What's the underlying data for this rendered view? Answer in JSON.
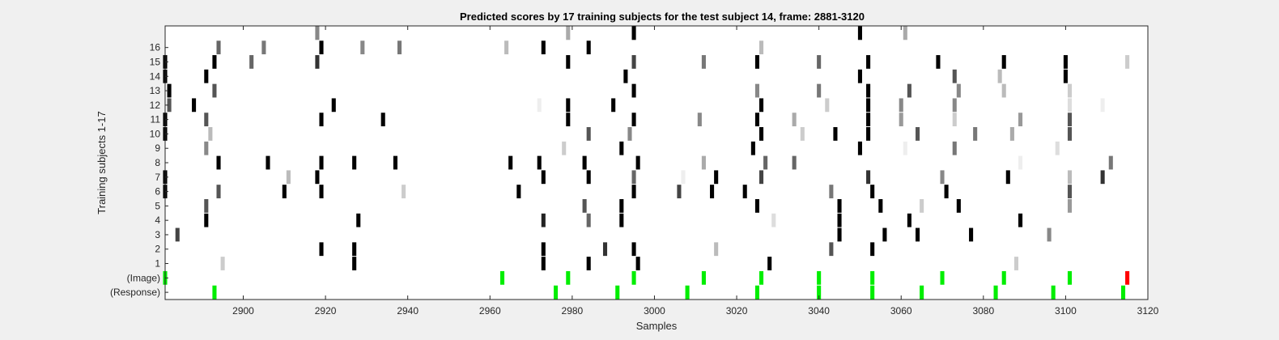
{
  "chart_data": {
    "type": "heatmap",
    "title": "Predicted scores by 17 training subjects for the test subject 14, frame: 2881-3120",
    "xlabel": "Samples",
    "ylabel": "Training subjects 1-17",
    "xlim": [
      2881,
      3120
    ],
    "xticks": [
      2900,
      2920,
      2940,
      2960,
      2980,
      3000,
      3020,
      3040,
      3060,
      3080,
      3100,
      3120
    ],
    "rows": [
      "(Response)",
      "(Image)",
      "1",
      "2",
      "3",
      "4",
      "5",
      "6",
      "7",
      "8",
      "9",
      "10",
      "11",
      "12",
      "13",
      "14",
      "15",
      "16",
      "17"
    ],
    "row_tick_labels": [
      "(Response)",
      "(Image)",
      "1",
      "2",
      "3",
      "4",
      "5",
      "6",
      "7",
      "8",
      "9",
      "10",
      "11",
      "12",
      "13",
      "14",
      "15",
      "16",
      ""
    ],
    "colors": {
      "image_marker": "#00ee00",
      "response_marker": "#00ee00",
      "target_marker": "#ff0000",
      "score": "grayscale (black = high)"
    },
    "marks": [
      {
        "row": "(Response)",
        "x": 2893,
        "color": "#00ee00"
      },
      {
        "row": "(Response)",
        "x": 2976,
        "color": "#00ee00"
      },
      {
        "row": "(Response)",
        "x": 2991,
        "color": "#00ee00"
      },
      {
        "row": "(Response)",
        "x": 3008,
        "color": "#00ee00"
      },
      {
        "row": "(Response)",
        "x": 3025,
        "color": "#00ee00"
      },
      {
        "row": "(Response)",
        "x": 3040,
        "color": "#00ee00"
      },
      {
        "row": "(Response)",
        "x": 3053,
        "color": "#00ee00"
      },
      {
        "row": "(Response)",
        "x": 3065,
        "color": "#00ee00"
      },
      {
        "row": "(Response)",
        "x": 3083,
        "color": "#00ee00"
      },
      {
        "row": "(Response)",
        "x": 3097,
        "color": "#00ee00"
      },
      {
        "row": "(Response)",
        "x": 3114,
        "color": "#00ee00"
      },
      {
        "row": "(Image)",
        "x": 2881,
        "color": "#00ee00"
      },
      {
        "row": "(Image)",
        "x": 2963,
        "color": "#00ee00"
      },
      {
        "row": "(Image)",
        "x": 2979,
        "color": "#00ee00"
      },
      {
        "row": "(Image)",
        "x": 2995,
        "color": "#00ee00"
      },
      {
        "row": "(Image)",
        "x": 3012,
        "color": "#00ee00"
      },
      {
        "row": "(Image)",
        "x": 3026,
        "color": "#00ee00"
      },
      {
        "row": "(Image)",
        "x": 3040,
        "color": "#00ee00"
      },
      {
        "row": "(Image)",
        "x": 3053,
        "color": "#00ee00"
      },
      {
        "row": "(Image)",
        "x": 3070,
        "color": "#00ee00"
      },
      {
        "row": "(Image)",
        "x": 3085,
        "color": "#00ee00"
      },
      {
        "row": "(Image)",
        "x": 3101,
        "color": "#00ee00"
      },
      {
        "row": "(Image)",
        "x": 3115,
        "color": "#ff0000"
      },
      {
        "row": "1",
        "x": 2895,
        "color": "#cccccc"
      },
      {
        "row": "1",
        "x": 2927,
        "color": "#000000"
      },
      {
        "row": "1",
        "x": 2973,
        "color": "#000000"
      },
      {
        "row": "1",
        "x": 2984,
        "color": "#000000"
      },
      {
        "row": "1",
        "x": 2996,
        "color": "#000000"
      },
      {
        "row": "1",
        "x": 3028,
        "color": "#000000"
      },
      {
        "row": "1",
        "x": 3088,
        "color": "#cccccc"
      },
      {
        "row": "2",
        "x": 2919,
        "color": "#000000"
      },
      {
        "row": "2",
        "x": 2927,
        "color": "#000000"
      },
      {
        "row": "2",
        "x": 2973,
        "color": "#000000"
      },
      {
        "row": "2",
        "x": 2988,
        "color": "#333333"
      },
      {
        "row": "2",
        "x": 2995,
        "color": "#000000"
      },
      {
        "row": "2",
        "x": 3015,
        "color": "#bbbbbb"
      },
      {
        "row": "2",
        "x": 3043,
        "color": "#555555"
      },
      {
        "row": "2",
        "x": 3053,
        "color": "#000000"
      },
      {
        "row": "3",
        "x": 2884,
        "color": "#444444"
      },
      {
        "row": "3",
        "x": 3045,
        "color": "#000000"
      },
      {
        "row": "3",
        "x": 3056,
        "color": "#000000"
      },
      {
        "row": "3",
        "x": 3064,
        "color": "#000000"
      },
      {
        "row": "3",
        "x": 3077,
        "color": "#000000"
      },
      {
        "row": "3",
        "x": 3096,
        "color": "#888888"
      },
      {
        "row": "4",
        "x": 2891,
        "color": "#000000"
      },
      {
        "row": "4",
        "x": 2928,
        "color": "#000000"
      },
      {
        "row": "4",
        "x": 2973,
        "color": "#222222"
      },
      {
        "row": "4",
        "x": 2984,
        "color": "#666666"
      },
      {
        "row": "4",
        "x": 2992,
        "color": "#000000"
      },
      {
        "row": "4",
        "x": 3029,
        "color": "#dddddd"
      },
      {
        "row": "4",
        "x": 3045,
        "color": "#000000"
      },
      {
        "row": "4",
        "x": 3062,
        "color": "#000000"
      },
      {
        "row": "4",
        "x": 3089,
        "color": "#000000"
      },
      {
        "row": "5",
        "x": 2891,
        "color": "#555555"
      },
      {
        "row": "5",
        "x": 2983,
        "color": "#555555"
      },
      {
        "row": "5",
        "x": 2992,
        "color": "#000000"
      },
      {
        "row": "5",
        "x": 3025,
        "color": "#000000"
      },
      {
        "row": "5",
        "x": 3045,
        "color": "#000000"
      },
      {
        "row": "5",
        "x": 3055,
        "color": "#000000"
      },
      {
        "row": "5",
        "x": 3065,
        "color": "#cccccc"
      },
      {
        "row": "5",
        "x": 3074,
        "color": "#000000"
      },
      {
        "row": "5",
        "x": 3101,
        "color": "#999999"
      },
      {
        "row": "6",
        "x": 2881,
        "color": "#000000"
      },
      {
        "row": "6",
        "x": 2894,
        "color": "#555555"
      },
      {
        "row": "6",
        "x": 2910,
        "color": "#000000"
      },
      {
        "row": "6",
        "x": 2919,
        "color": "#000000"
      },
      {
        "row": "6",
        "x": 2939,
        "color": "#cccccc"
      },
      {
        "row": "6",
        "x": 2967,
        "color": "#000000"
      },
      {
        "row": "6",
        "x": 2995,
        "color": "#000000"
      },
      {
        "row": "6",
        "x": 3006,
        "color": "#444444"
      },
      {
        "row": "6",
        "x": 3014,
        "color": "#000000"
      },
      {
        "row": "6",
        "x": 3022,
        "color": "#000000"
      },
      {
        "row": "6",
        "x": 3043,
        "color": "#777777"
      },
      {
        "row": "6",
        "x": 3053,
        "color": "#000000"
      },
      {
        "row": "6",
        "x": 3071,
        "color": "#000000"
      },
      {
        "row": "6",
        "x": 3101,
        "color": "#555555"
      },
      {
        "row": "7",
        "x": 2881,
        "color": "#000000"
      },
      {
        "row": "7",
        "x": 2911,
        "color": "#bbbbbb"
      },
      {
        "row": "7",
        "x": 2918,
        "color": "#000000"
      },
      {
        "row": "7",
        "x": 2973,
        "color": "#000000"
      },
      {
        "row": "7",
        "x": 2984,
        "color": "#000000"
      },
      {
        "row": "7",
        "x": 2995,
        "color": "#666666"
      },
      {
        "row": "7",
        "x": 3007,
        "color": "#eeeeee"
      },
      {
        "row": "7",
        "x": 3015,
        "color": "#000000"
      },
      {
        "row": "7",
        "x": 3026,
        "color": "#444444"
      },
      {
        "row": "7",
        "x": 3052,
        "color": "#333333"
      },
      {
        "row": "7",
        "x": 3070,
        "color": "#888888"
      },
      {
        "row": "7",
        "x": 3086,
        "color": "#000000"
      },
      {
        "row": "7",
        "x": 3101,
        "color": "#bbbbbb"
      },
      {
        "row": "7",
        "x": 3109,
        "color": "#333333"
      },
      {
        "row": "8",
        "x": 2894,
        "color": "#000000"
      },
      {
        "row": "8",
        "x": 2906,
        "color": "#000000"
      },
      {
        "row": "8",
        "x": 2919,
        "color": "#000000"
      },
      {
        "row": "8",
        "x": 2927,
        "color": "#000000"
      },
      {
        "row": "8",
        "x": 2937,
        "color": "#000000"
      },
      {
        "row": "8",
        "x": 2965,
        "color": "#000000"
      },
      {
        "row": "8",
        "x": 2972,
        "color": "#000000"
      },
      {
        "row": "8",
        "x": 2983,
        "color": "#000000"
      },
      {
        "row": "8",
        "x": 2996,
        "color": "#000000"
      },
      {
        "row": "8",
        "x": 3012,
        "color": "#aaaaaa"
      },
      {
        "row": "8",
        "x": 3027,
        "color": "#666666"
      },
      {
        "row": "8",
        "x": 3034,
        "color": "#666666"
      },
      {
        "row": "8",
        "x": 3089,
        "color": "#eeeeee"
      },
      {
        "row": "8",
        "x": 3111,
        "color": "#777777"
      },
      {
        "row": "9",
        "x": 2891,
        "color": "#888888"
      },
      {
        "row": "9",
        "x": 2978,
        "color": "#cccccc"
      },
      {
        "row": "9",
        "x": 2992,
        "color": "#000000"
      },
      {
        "row": "9",
        "x": 3024,
        "color": "#000000"
      },
      {
        "row": "9",
        "x": 3050,
        "color": "#000000"
      },
      {
        "row": "9",
        "x": 3061,
        "color": "#eeeeee"
      },
      {
        "row": "9",
        "x": 3073,
        "color": "#777777"
      },
      {
        "row": "9",
        "x": 3098,
        "color": "#dddddd"
      },
      {
        "row": "10",
        "x": 2881,
        "color": "#000000"
      },
      {
        "row": "10",
        "x": 2892,
        "color": "#bbbbbb"
      },
      {
        "row": "10",
        "x": 2984,
        "color": "#555555"
      },
      {
        "row": "10",
        "x": 2994,
        "color": "#888888"
      },
      {
        "row": "10",
        "x": 3026,
        "color": "#000000"
      },
      {
        "row": "10",
        "x": 3036,
        "color": "#cccccc"
      },
      {
        "row": "10",
        "x": 3044,
        "color": "#000000"
      },
      {
        "row": "10",
        "x": 3052,
        "color": "#000000"
      },
      {
        "row": "10",
        "x": 3064,
        "color": "#555555"
      },
      {
        "row": "10",
        "x": 3078,
        "color": "#777777"
      },
      {
        "row": "10",
        "x": 3087,
        "color": "#aaaaaa"
      },
      {
        "row": "10",
        "x": 3101,
        "color": "#555555"
      },
      {
        "row": "11",
        "x": 2881,
        "color": "#000000"
      },
      {
        "row": "11",
        "x": 2891,
        "color": "#555555"
      },
      {
        "row": "11",
        "x": 2919,
        "color": "#000000"
      },
      {
        "row": "11",
        "x": 2934,
        "color": "#000000"
      },
      {
        "row": "11",
        "x": 2979,
        "color": "#000000"
      },
      {
        "row": "11",
        "x": 2995,
        "color": "#000000"
      },
      {
        "row": "11",
        "x": 3011,
        "color": "#888888"
      },
      {
        "row": "11",
        "x": 3025,
        "color": "#000000"
      },
      {
        "row": "11",
        "x": 3034,
        "color": "#aaaaaa"
      },
      {
        "row": "11",
        "x": 3052,
        "color": "#000000"
      },
      {
        "row": "11",
        "x": 3060,
        "color": "#999999"
      },
      {
        "row": "11",
        "x": 3073,
        "color": "#cccccc"
      },
      {
        "row": "11",
        "x": 3089,
        "color": "#999999"
      },
      {
        "row": "11",
        "x": 3101,
        "color": "#555555"
      },
      {
        "row": "12",
        "x": 2882,
        "color": "#555555"
      },
      {
        "row": "12",
        "x": 2888,
        "color": "#000000"
      },
      {
        "row": "12",
        "x": 2922,
        "color": "#000000"
      },
      {
        "row": "12",
        "x": 2972,
        "color": "#eeeeee"
      },
      {
        "row": "12",
        "x": 2979,
        "color": "#000000"
      },
      {
        "row": "12",
        "x": 2990,
        "color": "#000000"
      },
      {
        "row": "12",
        "x": 3026,
        "color": "#000000"
      },
      {
        "row": "12",
        "x": 3042,
        "color": "#cccccc"
      },
      {
        "row": "12",
        "x": 3052,
        "color": "#000000"
      },
      {
        "row": "12",
        "x": 3060,
        "color": "#888888"
      },
      {
        "row": "12",
        "x": 3073,
        "color": "#888888"
      },
      {
        "row": "12",
        "x": 3101,
        "color": "#dddddd"
      },
      {
        "row": "12",
        "x": 3109,
        "color": "#eeeeee"
      },
      {
        "row": "13",
        "x": 2882,
        "color": "#000000"
      },
      {
        "row": "13",
        "x": 2893,
        "color": "#555555"
      },
      {
        "row": "13",
        "x": 2995,
        "color": "#000000"
      },
      {
        "row": "13",
        "x": 3025,
        "color": "#888888"
      },
      {
        "row": "13",
        "x": 3040,
        "color": "#777777"
      },
      {
        "row": "13",
        "x": 3052,
        "color": "#000000"
      },
      {
        "row": "13",
        "x": 3062,
        "color": "#555555"
      },
      {
        "row": "13",
        "x": 3074,
        "color": "#888888"
      },
      {
        "row": "13",
        "x": 3085,
        "color": "#bbbbbb"
      },
      {
        "row": "13",
        "x": 3101,
        "color": "#cccccc"
      },
      {
        "row": "14",
        "x": 2881,
        "color": "#000000"
      },
      {
        "row": "14",
        "x": 2891,
        "color": "#000000"
      },
      {
        "row": "14",
        "x": 2993,
        "color": "#000000"
      },
      {
        "row": "14",
        "x": 3050,
        "color": "#000000"
      },
      {
        "row": "14",
        "x": 3073,
        "color": "#555555"
      },
      {
        "row": "14",
        "x": 3084,
        "color": "#bbbbbb"
      },
      {
        "row": "14",
        "x": 3100,
        "color": "#000000"
      },
      {
        "row": "15",
        "x": 2881,
        "color": "#000000"
      },
      {
        "row": "15",
        "x": 2893,
        "color": "#000000"
      },
      {
        "row": "15",
        "x": 2902,
        "color": "#666666"
      },
      {
        "row": "15",
        "x": 2918,
        "color": "#333333"
      },
      {
        "row": "15",
        "x": 2979,
        "color": "#000000"
      },
      {
        "row": "15",
        "x": 2995,
        "color": "#444444"
      },
      {
        "row": "15",
        "x": 3012,
        "color": "#777777"
      },
      {
        "row": "15",
        "x": 3025,
        "color": "#000000"
      },
      {
        "row": "15",
        "x": 3040,
        "color": "#666666"
      },
      {
        "row": "15",
        "x": 3052,
        "color": "#000000"
      },
      {
        "row": "15",
        "x": 3069,
        "color": "#000000"
      },
      {
        "row": "15",
        "x": 3085,
        "color": "#000000"
      },
      {
        "row": "15",
        "x": 3100,
        "color": "#000000"
      },
      {
        "row": "15",
        "x": 3115,
        "color": "#cccccc"
      },
      {
        "row": "16",
        "x": 2894,
        "color": "#666666"
      },
      {
        "row": "16",
        "x": 2905,
        "color": "#777777"
      },
      {
        "row": "16",
        "x": 2919,
        "color": "#000000"
      },
      {
        "row": "16",
        "x": 2929,
        "color": "#888888"
      },
      {
        "row": "16",
        "x": 2938,
        "color": "#777777"
      },
      {
        "row": "16",
        "x": 2964,
        "color": "#bbbbbb"
      },
      {
        "row": "16",
        "x": 2973,
        "color": "#000000"
      },
      {
        "row": "16",
        "x": 2984,
        "color": "#000000"
      },
      {
        "row": "16",
        "x": 3026,
        "color": "#bbbbbb"
      },
      {
        "row": "17",
        "x": 2918,
        "color": "#888888"
      },
      {
        "row": "17",
        "x": 2979,
        "color": "#aaaaaa"
      },
      {
        "row": "17",
        "x": 2995,
        "color": "#000000"
      },
      {
        "row": "17",
        "x": 3050,
        "color": "#000000"
      },
      {
        "row": "17",
        "x": 3061,
        "color": "#aaaaaa"
      }
    ]
  }
}
